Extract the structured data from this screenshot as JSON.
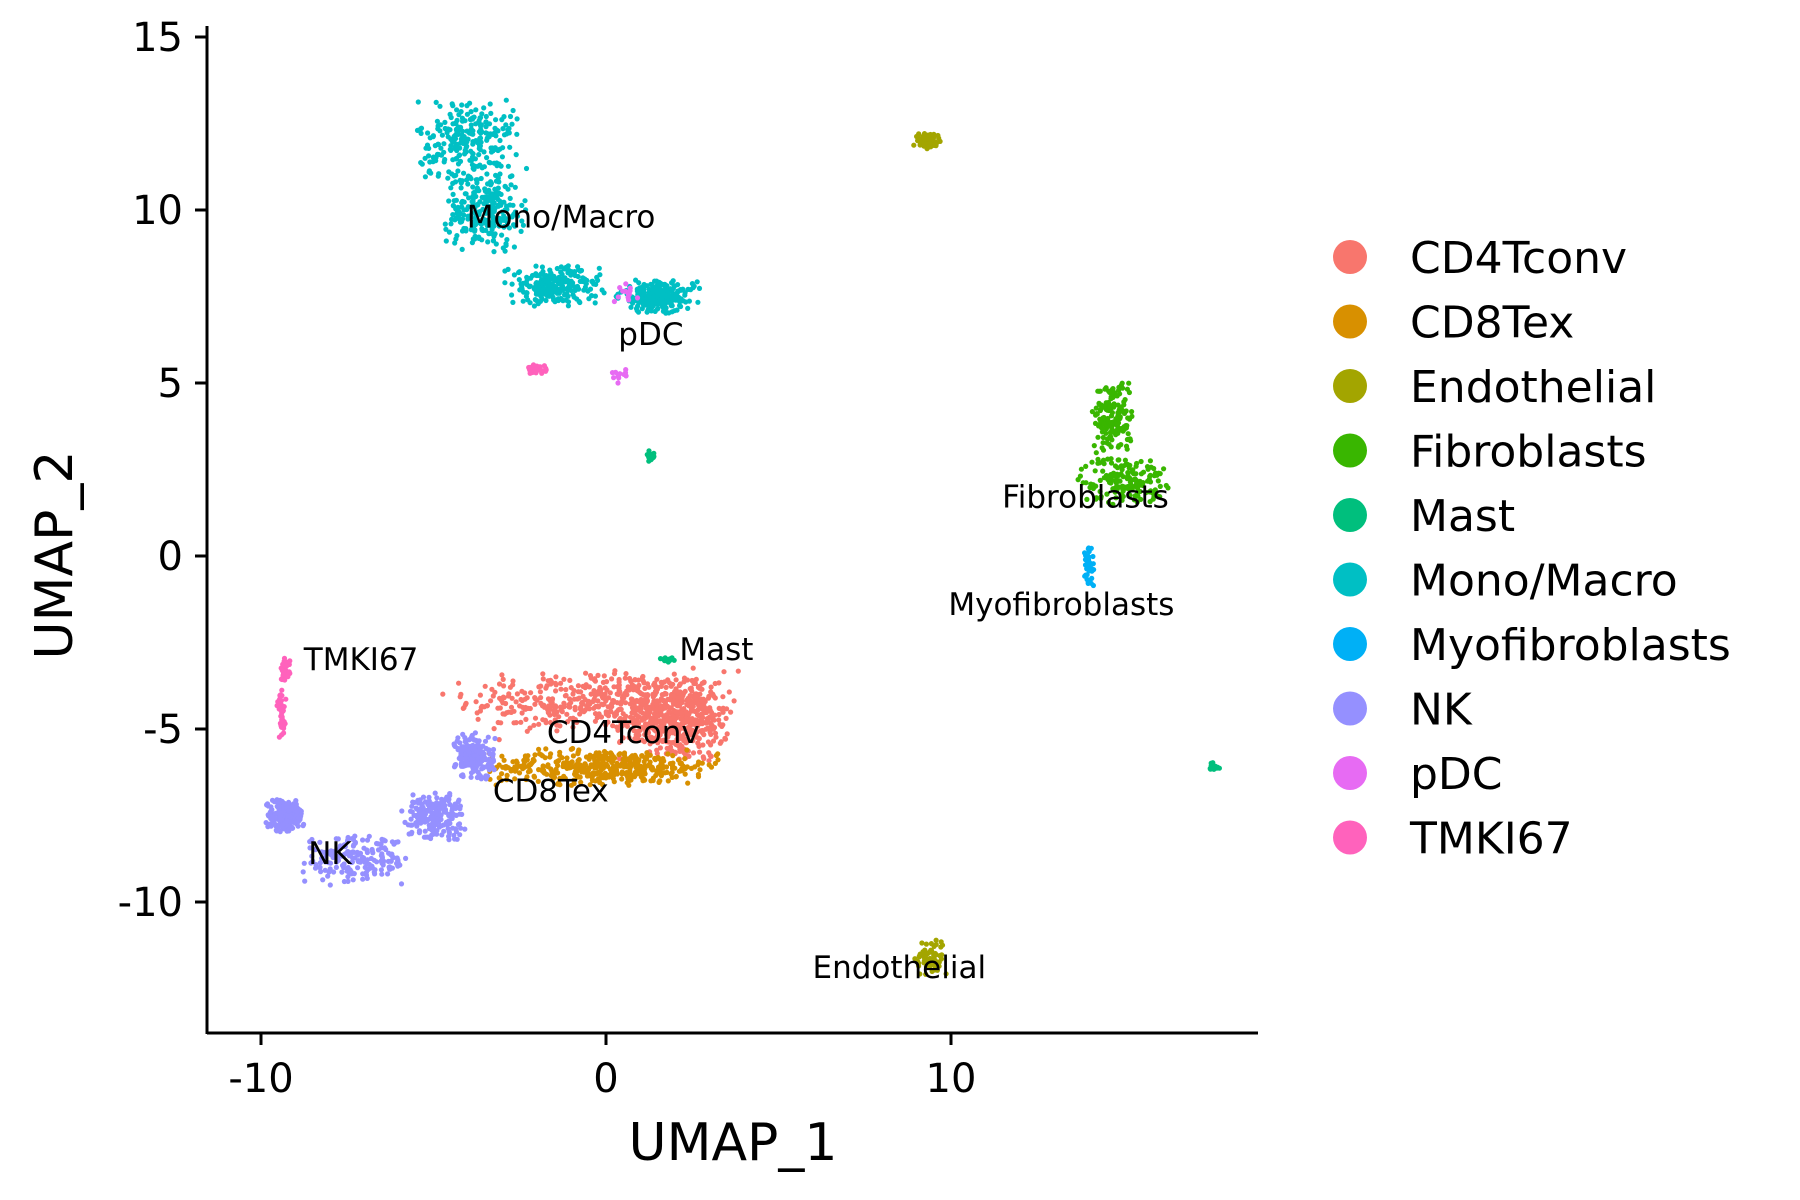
{
  "chart_data": {
    "type": "scatter",
    "title": "",
    "xlabel": "UMAP_1",
    "ylabel": "UMAP_2",
    "xlim": [
      -11.5,
      19
    ],
    "ylim": [
      -13.8,
      15.5
    ],
    "x_ticks": [
      -10,
      0,
      10
    ],
    "y_ticks": [
      -10,
      -5,
      0,
      5,
      10,
      15
    ],
    "x_tick_labels": [
      "-10",
      "0",
      "10"
    ],
    "y_tick_labels": [
      "-10",
      "-5",
      "0",
      "5",
      "10",
      "15"
    ],
    "grid": false,
    "legend_position": "right",
    "legend": [
      {
        "name": "CD4Tconv",
        "color": "#F8766D"
      },
      {
        "name": "CD8Tex",
        "color": "#D89000"
      },
      {
        "name": "Endothelial",
        "color": "#A3A500"
      },
      {
        "name": "Fibroblasts",
        "color": "#39B600"
      },
      {
        "name": "Mast",
        "color": "#00BF7D"
      },
      {
        "name": "Mono/Macro",
        "color": "#00BFC4"
      },
      {
        "name": "Myofibroblasts",
        "color": "#00B0F6"
      },
      {
        "name": "NK",
        "color": "#9590FF"
      },
      {
        "name": "pDC",
        "color": "#E76BF3"
      },
      {
        "name": "TMKI67",
        "color": "#FF62BC"
      }
    ],
    "cluster_labels": [
      {
        "text": "Mono/Macro",
        "x": -1.3,
        "y": 9.5
      },
      {
        "text": "pDC",
        "x": 1.3,
        "y": 6.1
      },
      {
        "text": "Fibroblasts",
        "x": 13.9,
        "y": 1.4
      },
      {
        "text": "Myofibroblasts",
        "x": 13.2,
        "y": -1.7
      },
      {
        "text": "TMKI67",
        "x": -7.1,
        "y": -3.3
      },
      {
        "text": "Mast",
        "x": 3.2,
        "y": -3.0
      },
      {
        "text": "CD4Tconv",
        "x": 0.5,
        "y": -5.4
      },
      {
        "text": "CD8Tex",
        "x": -1.6,
        "y": -7.1
      },
      {
        "text": "NK",
        "x": -8.0,
        "y": -8.9
      },
      {
        "text": "Endothelial",
        "x": 8.5,
        "y": -12.2
      }
    ],
    "series": [
      {
        "name": "CD4Tconv",
        "color": "#F8766D",
        "count": 900,
        "clusters": [
          {
            "cx": -0.2,
            "cy": -4.2,
            "sx": 3.4,
            "sy": 0.8
          },
          {
            "cx": 2.0,
            "cy": -4.8,
            "sx": 1.4,
            "sy": 1.0
          }
        ]
      },
      {
        "name": "CD8Tex",
        "color": "#D89000",
        "count": 450,
        "clusters": [
          {
            "cx": 0.0,
            "cy": -6.1,
            "sx": 3.0,
            "sy": 0.45
          }
        ]
      },
      {
        "name": "Endothelial",
        "color": "#A3A500",
        "count": 140,
        "clusters": [
          {
            "cx": 9.3,
            "cy": 12.0,
            "sx": 0.35,
            "sy": 0.2
          },
          {
            "cx": 9.4,
            "cy": -11.6,
            "sx": 0.4,
            "sy": 0.5
          }
        ]
      },
      {
        "name": "Fibroblasts",
        "color": "#39B600",
        "count": 320,
        "clusters": [
          {
            "cx": 14.7,
            "cy": 4.0,
            "sx": 0.5,
            "sy": 1.0
          },
          {
            "cx": 15.0,
            "cy": 2.2,
            "sx": 1.1,
            "sy": 0.6
          }
        ]
      },
      {
        "name": "Mast",
        "color": "#00BF7D",
        "count": 40,
        "clusters": [
          {
            "cx": 1.3,
            "cy": 2.9,
            "sx": 0.1,
            "sy": 0.15
          },
          {
            "cx": 17.6,
            "cy": -6.1,
            "sx": 0.25,
            "sy": 0.15
          },
          {
            "cx": 1.8,
            "cy": -3.0,
            "sx": 0.2,
            "sy": 0.1
          }
        ]
      },
      {
        "name": "Mono/Macro",
        "color": "#00BFC4",
        "count": 1000,
        "clusters": [
          {
            "cx": -4.0,
            "cy": 12.0,
            "sx": 1.3,
            "sy": 1.1
          },
          {
            "cx": -3.5,
            "cy": 10.0,
            "sx": 1.0,
            "sy": 1.0
          },
          {
            "cx": -1.5,
            "cy": 7.8,
            "sx": 1.2,
            "sy": 0.5
          },
          {
            "cx": 1.5,
            "cy": 7.5,
            "sx": 1.0,
            "sy": 0.4
          }
        ]
      },
      {
        "name": "Myofibroblasts",
        "color": "#00B0F6",
        "count": 40,
        "clusters": [
          {
            "cx": 14.0,
            "cy": -0.3,
            "sx": 0.15,
            "sy": 0.5
          }
        ]
      },
      {
        "name": "NK",
        "color": "#9590FF",
        "count": 750,
        "clusters": [
          {
            "cx": -7.2,
            "cy": -8.8,
            "sx": 1.4,
            "sy": 0.6
          },
          {
            "cx": -9.3,
            "cy": -7.5,
            "sx": 0.5,
            "sy": 0.4
          },
          {
            "cx": -5.0,
            "cy": -7.5,
            "sx": 0.8,
            "sy": 0.6
          },
          {
            "cx": -3.8,
            "cy": -5.8,
            "sx": 0.5,
            "sy": 0.6
          }
        ]
      },
      {
        "name": "pDC",
        "color": "#E76BF3",
        "count": 25,
        "clusters": [
          {
            "cx": 0.4,
            "cy": 5.2,
            "sx": 0.2,
            "sy": 0.2
          },
          {
            "cx": 0.6,
            "cy": 7.6,
            "sx": 0.3,
            "sy": 0.3
          }
        ]
      },
      {
        "name": "TMKI67",
        "color": "#FF62BC",
        "count": 110,
        "clusters": [
          {
            "cx": -2.0,
            "cy": 5.4,
            "sx": 0.25,
            "sy": 0.12
          },
          {
            "cx": -9.3,
            "cy": -3.3,
            "sx": 0.12,
            "sy": 0.3
          },
          {
            "cx": -9.4,
            "cy": -4.6,
            "sx": 0.12,
            "sy": 0.6
          }
        ]
      }
    ]
  }
}
